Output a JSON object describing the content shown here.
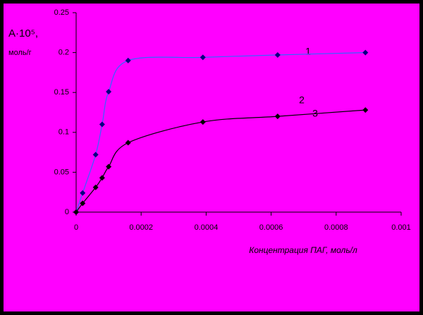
{
  "chart_data": {
    "type": "line",
    "y_label": [
      "A·10⁵,",
      "моль/г"
    ],
    "x_label": "Концентрация ПАГ, моль/л",
    "x": [
      0,
      2e-05,
      6e-05,
      8e-05,
      0.0001,
      0.00016,
      0.00039,
      0.00062,
      0.00089
    ],
    "series": [
      {
        "color": "#3366ff",
        "marker_color": "#000080",
        "values": [
          0,
          0.024,
          0.072,
          0.11,
          0.151,
          0.19,
          0.194,
          0.197,
          0.2
        ]
      },
      {
        "color": "#000000",
        "marker_color": "#000000",
        "values": [
          0,
          0.011,
          0.031,
          0.043,
          0.057,
          0.087,
          0.113,
          0.12,
          0.128
        ]
      }
    ],
    "annotations": [
      "1",
      "2",
      "3"
    ],
    "xlim": [
      0,
      0.001
    ],
    "xticks": [
      0,
      0.0002,
      0.0004,
      0.0006,
      0.0008,
      0.001
    ],
    "ylim": [
      0,
      0.25
    ],
    "yticks": [
      0,
      0.05,
      0.1,
      0.15,
      0.2,
      0.25
    ],
    "background": "#ff00ff",
    "grid": false
  }
}
